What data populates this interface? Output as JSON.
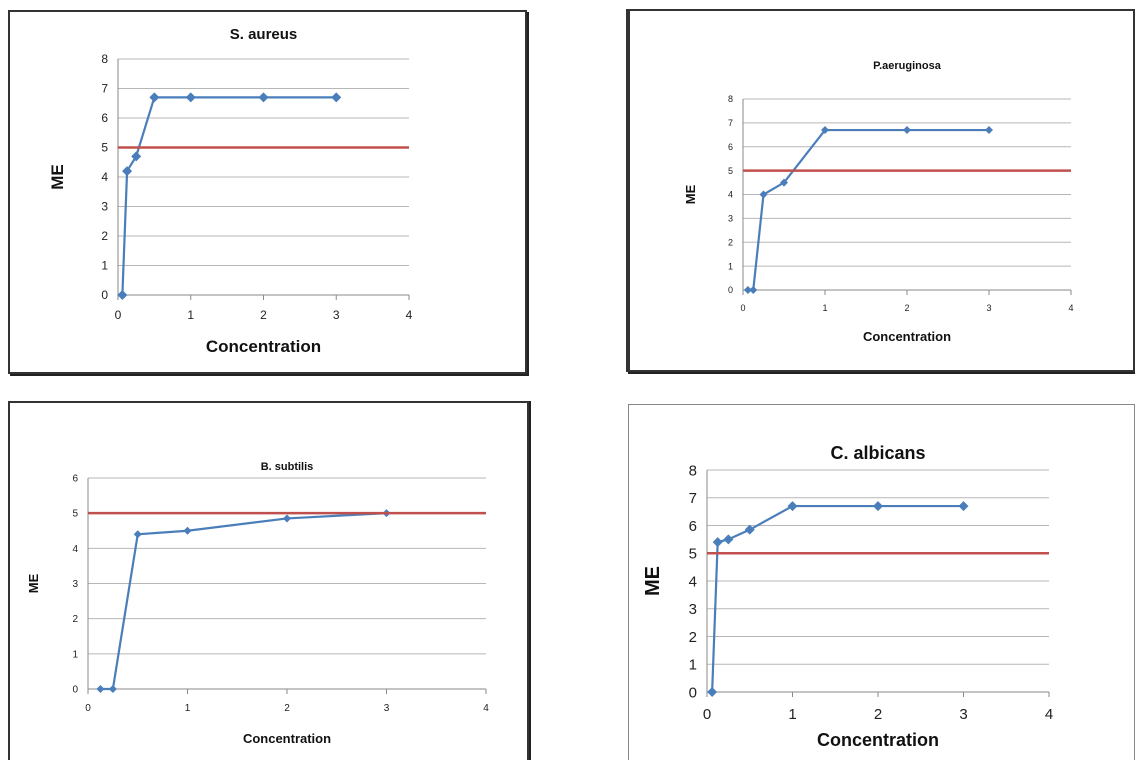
{
  "chart_data": [
    {
      "type": "line",
      "title": "S. aureus",
      "xlabel": "Concentration",
      "ylabel": "ME",
      "xlim": [
        0,
        4
      ],
      "ylim": [
        0,
        8
      ],
      "xticks": [
        0,
        1,
        2,
        3,
        4
      ],
      "yticks": [
        0,
        1,
        2,
        3,
        4,
        5,
        6,
        7,
        8
      ],
      "grid": true,
      "legend": "none",
      "series": [
        {
          "x": [
            0.06,
            0.125,
            0.25,
            0.5,
            1,
            2,
            3
          ],
          "y": [
            0,
            4.2,
            4.7,
            6.7,
            6.7,
            6.7,
            6.7
          ],
          "color": "#4a7ebb",
          "marker": "diamond"
        },
        {
          "x": [
            0,
            4
          ],
          "y": [
            5,
            5
          ],
          "color": "#c0504d",
          "marker": "none"
        }
      ]
    },
    {
      "type": "line",
      "title": "P.aeruginosa",
      "xlabel": "Concentration",
      "ylabel": "ME",
      "xlim": [
        0,
        4
      ],
      "ylim": [
        0,
        8
      ],
      "xticks": [
        0,
        1,
        2,
        3,
        4
      ],
      "yticks": [
        0,
        1,
        2,
        3,
        4,
        5,
        6,
        7,
        8
      ],
      "grid": true,
      "legend": "none",
      "series": [
        {
          "x": [
            0.06,
            0.125,
            0.25,
            0.5,
            1,
            2,
            3
          ],
          "y": [
            0,
            0,
            4,
            4.5,
            6.7,
            6.7,
            6.7
          ],
          "color": "#4a7ebb",
          "marker": "diamond"
        },
        {
          "x": [
            0,
            4
          ],
          "y": [
            5,
            5
          ],
          "color": "#c0504d",
          "marker": "none"
        }
      ]
    },
    {
      "type": "line",
      "title": "B. subtilis",
      "xlabel": "Concentration",
      "ylabel": "ME",
      "xlim": [
        0,
        4
      ],
      "ylim": [
        0,
        6
      ],
      "xticks": [
        0,
        1,
        2,
        3,
        4
      ],
      "yticks": [
        0,
        1,
        2,
        3,
        4,
        5,
        6
      ],
      "grid": true,
      "legend": "none",
      "series": [
        {
          "x": [
            0.125,
            0.25,
            0.5,
            1,
            2,
            3
          ],
          "y": [
            0,
            0,
            4.4,
            4.5,
            4.85,
            5
          ],
          "color": "#4a7ebb",
          "marker": "diamond"
        },
        {
          "x": [
            0,
            4
          ],
          "y": [
            5,
            5
          ],
          "color": "#c0504d",
          "marker": "none"
        }
      ]
    },
    {
      "type": "line",
      "title": "C. albicans",
      "xlabel": "Concentration",
      "ylabel": "ME",
      "xlim": [
        0,
        4
      ],
      "ylim": [
        0,
        8
      ],
      "xticks": [
        0,
        1,
        2,
        3,
        4
      ],
      "yticks": [
        0,
        1,
        2,
        3,
        4,
        5,
        6,
        7,
        8
      ],
      "grid": true,
      "legend": "none",
      "series": [
        {
          "x": [
            0.06,
            0.125,
            0.25,
            0.5,
            1,
            2,
            3
          ],
          "y": [
            0,
            5.4,
            5.5,
            5.85,
            6.7,
            6.7,
            6.7
          ],
          "color": "#4a7ebb",
          "marker": "diamond"
        },
        {
          "x": [
            0,
            4
          ],
          "y": [
            5,
            5
          ],
          "color": "#c0504d",
          "marker": "none"
        }
      ]
    }
  ]
}
